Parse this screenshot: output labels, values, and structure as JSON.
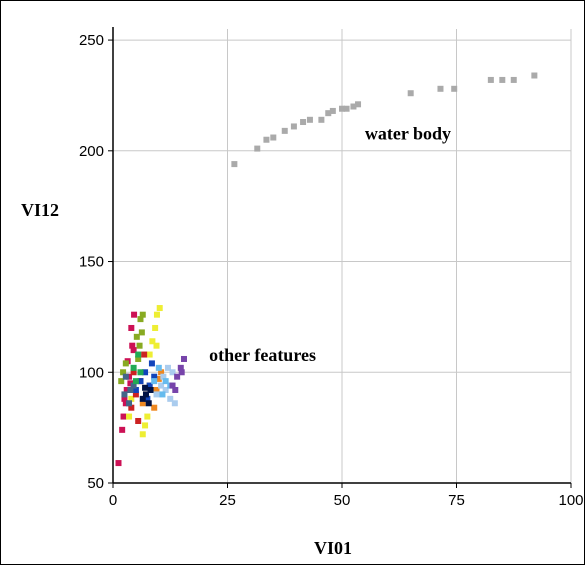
{
  "chart_data": {
    "type": "scatter",
    "title": "",
    "xlabel": "VI01",
    "ylabel": "VI12",
    "xlim": [
      0,
      100
    ],
    "ylim": [
      50,
      255
    ],
    "x_ticks": [
      0,
      25,
      50,
      75,
      100
    ],
    "y_ticks": [
      50,
      100,
      150,
      200,
      250
    ],
    "grid": true,
    "legend": "none",
    "annotations": [
      {
        "text": "water body",
        "x": 55,
        "y": 205
      },
      {
        "text": "other features",
        "x": 21,
        "y": 105
      }
    ],
    "series": [
      {
        "color": "#aaaaaa",
        "points": [
          [
            26.5,
            194
          ],
          [
            31.5,
            201
          ],
          [
            33.5,
            205
          ],
          [
            35,
            206
          ],
          [
            37.5,
            209
          ],
          [
            39.5,
            211
          ],
          [
            41.5,
            213
          ],
          [
            43,
            214
          ],
          [
            45.5,
            214
          ],
          [
            47,
            217
          ],
          [
            48,
            218
          ],
          [
            50,
            219
          ],
          [
            51,
            219
          ],
          [
            52.5,
            220
          ],
          [
            53.5,
            221
          ],
          [
            65,
            226
          ],
          [
            71.5,
            228
          ],
          [
            74.5,
            228
          ],
          [
            82.5,
            232
          ],
          [
            85,
            232
          ],
          [
            87.5,
            232
          ],
          [
            92,
            234
          ]
        ]
      },
      {
        "color": "#cc1155",
        "points": [
          [
            1.2,
            59
          ],
          [
            2,
            74
          ],
          [
            2.3,
            80
          ],
          [
            2.8,
            86
          ],
          [
            3,
            92
          ],
          [
            3.5,
            98
          ],
          [
            3.2,
            105
          ],
          [
            4.2,
            112
          ],
          [
            4,
            120
          ],
          [
            4.6,
            126
          ],
          [
            4.5,
            110
          ],
          [
            3.8,
            95
          ],
          [
            2.5,
            88
          ]
        ]
      },
      {
        "color": "#88aa22",
        "points": [
          [
            1.8,
            96
          ],
          [
            2.2,
            100
          ],
          [
            2.8,
            104
          ],
          [
            5.5,
            106
          ],
          [
            5.8,
            112
          ],
          [
            6.3,
            118
          ],
          [
            6,
            124
          ],
          [
            6.5,
            126
          ],
          [
            5.2,
            116
          ]
        ]
      },
      {
        "color": "#eeee33",
        "points": [
          [
            6.5,
            72
          ],
          [
            7,
            76
          ],
          [
            7.5,
            80
          ],
          [
            8,
            108
          ],
          [
            8.6,
            114
          ],
          [
            9.2,
            120
          ],
          [
            9.6,
            126
          ],
          [
            10.2,
            129
          ],
          [
            9.5,
            112
          ],
          [
            4,
            88
          ],
          [
            3.5,
            80
          ]
        ]
      },
      {
        "color": "#ee8822",
        "points": [
          [
            6.5,
            86
          ],
          [
            7.2,
            90
          ],
          [
            8,
            94
          ],
          [
            9.5,
            92
          ],
          [
            10,
            97
          ],
          [
            10.5,
            100
          ],
          [
            9,
            84
          ]
        ]
      },
      {
        "color": "#cc2222",
        "points": [
          [
            4,
            84
          ],
          [
            5,
            90
          ],
          [
            6,
            96
          ],
          [
            5.5,
            78
          ],
          [
            4.5,
            100
          ],
          [
            6.8,
            108
          ]
        ]
      },
      {
        "color": "#1144bb",
        "points": [
          [
            6,
            96
          ],
          [
            7,
            100
          ],
          [
            8,
            94
          ],
          [
            7.5,
            88
          ],
          [
            9,
            98
          ],
          [
            5,
            92
          ],
          [
            8.5,
            104
          ]
        ]
      },
      {
        "color": "#001144",
        "points": [
          [
            6.5,
            88
          ],
          [
            7.2,
            90
          ],
          [
            7.8,
            86
          ],
          [
            7,
            93
          ],
          [
            8.2,
            92
          ]
        ]
      },
      {
        "color": "#aaccee",
        "points": [
          [
            9.5,
            90
          ],
          [
            10.5,
            94
          ],
          [
            11,
            98
          ],
          [
            12,
            102
          ],
          [
            13,
            100
          ],
          [
            12.5,
            88
          ],
          [
            13.5,
            86
          ],
          [
            11.5,
            92
          ]
        ]
      },
      {
        "color": "#66bbee",
        "points": [
          [
            9,
            96
          ],
          [
            10,
            102
          ],
          [
            11.5,
            96
          ],
          [
            12.5,
            94
          ],
          [
            10.8,
            90
          ]
        ]
      },
      {
        "color": "#7744aa",
        "points": [
          [
            13,
            94
          ],
          [
            14,
            98
          ],
          [
            14.8,
            102
          ],
          [
            15.5,
            106
          ],
          [
            13.6,
            92
          ],
          [
            15,
            100
          ]
        ]
      },
      {
        "color": "#446688",
        "points": [
          [
            2.5,
            90
          ],
          [
            3.5,
            86
          ],
          [
            4.5,
            94
          ],
          [
            2.8,
            98
          ],
          [
            3.8,
            92
          ]
        ]
      },
      {
        "color": "#22aa55",
        "points": [
          [
            4.5,
            102
          ],
          [
            5.5,
            108
          ],
          [
            6,
            100
          ],
          [
            5,
            96
          ]
        ]
      }
    ]
  }
}
